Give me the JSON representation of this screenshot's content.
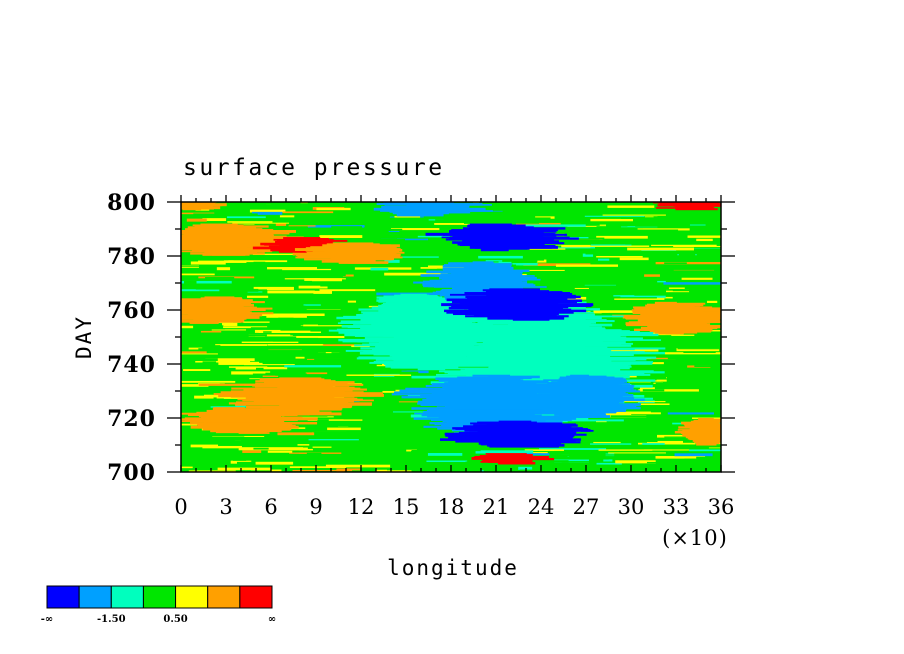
{
  "chart_data": {
    "type": "heatmap",
    "title": "surface pressure",
    "xlabel": "longitude",
    "ylabel": "DAY",
    "x_multiplier_label": "(×10)",
    "xlim": [
      0,
      36
    ],
    "ylim": [
      700,
      800
    ],
    "x_ticks": [
      0,
      3,
      6,
      9,
      12,
      15,
      18,
      21,
      24,
      27,
      30,
      33,
      36
    ],
    "y_ticks": [
      700,
      720,
      740,
      760,
      780,
      800
    ],
    "colorbar": {
      "colors": [
        "#0000ff",
        "#00a0ff",
        "#00ffbe",
        "#00e600",
        "#ffff00",
        "#ffa000",
        "#ff0000"
      ],
      "labels": [
        "-∞",
        "-1.50",
        "0.50",
        "∞"
      ]
    },
    "blue_regions": [
      {
        "x": 21.5,
        "y": 787,
        "rx": 3.5,
        "ry": 5,
        "level": 0
      },
      {
        "x": 22.5,
        "y": 762,
        "rx": 4.0,
        "ry": 6,
        "level": 0
      },
      {
        "x": 20.0,
        "y": 770,
        "rx": 3.0,
        "ry": 8,
        "level": 1
      },
      {
        "x": 22.5,
        "y": 714,
        "rx": 4.0,
        "ry": 5,
        "level": 0
      },
      {
        "x": 21.0,
        "y": 725,
        "rx": 5.0,
        "ry": 11,
        "level": 1
      },
      {
        "x": 24.0,
        "y": 740,
        "rx": 6.0,
        "ry": 22,
        "level": 2
      },
      {
        "x": 16.0,
        "y": 752,
        "rx": 4.0,
        "ry": 14,
        "level": 2
      },
      {
        "x": 27.0,
        "y": 728,
        "rx": 3.0,
        "ry": 8,
        "level": 1
      },
      {
        "x": 16.5,
        "y": 798,
        "rx": 3.0,
        "ry": 3,
        "level": 1
      }
    ],
    "warm_regions": [
      {
        "x": 3.0,
        "y": 786,
        "rx": 3.5,
        "ry": 6,
        "level": 5
      },
      {
        "x": 8.5,
        "y": 784,
        "rx": 2.5,
        "ry": 3,
        "level": 6
      },
      {
        "x": 11.5,
        "y": 781,
        "rx": 3.0,
        "ry": 4,
        "level": 5
      },
      {
        "x": 2.0,
        "y": 760,
        "rx": 3.0,
        "ry": 5,
        "level": 5
      },
      {
        "x": 8.0,
        "y": 728,
        "rx": 4.0,
        "ry": 7,
        "level": 5
      },
      {
        "x": 4.0,
        "y": 719,
        "rx": 3.5,
        "ry": 5,
        "level": 5
      },
      {
        "x": 33.0,
        "y": 757,
        "rx": 3.0,
        "ry": 6,
        "level": 5
      },
      {
        "x": 35.0,
        "y": 715,
        "rx": 1.5,
        "ry": 5,
        "level": 5
      },
      {
        "x": 22.0,
        "y": 705,
        "rx": 2.0,
        "ry": 2,
        "level": 6
      },
      {
        "x": 34.0,
        "y": 799,
        "rx": 2.0,
        "ry": 2,
        "level": 6
      },
      {
        "x": 1.0,
        "y": 799,
        "rx": 1.5,
        "ry": 2,
        "level": 5
      }
    ]
  }
}
